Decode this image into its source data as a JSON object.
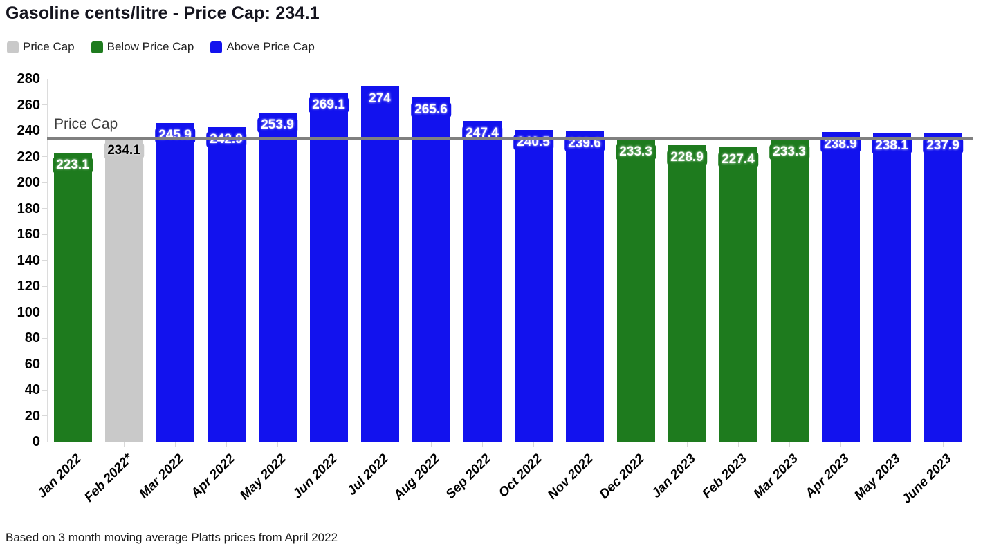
{
  "title": "Gasoline cents/litre - Price Cap: 234.1",
  "footnote": "Based on 3 month moving average Platts prices from April 2022",
  "chart_data": {
    "type": "bar",
    "title": "Gasoline cents/litre - Price Cap: 234.1",
    "annotation": "Price Cap",
    "price_cap": 234.1,
    "ylim": [
      0,
      280
    ],
    "ytick_step": 20,
    "grid": false,
    "legend_position": "top-left",
    "legend": [
      {
        "label": "Price Cap",
        "key": "cap"
      },
      {
        "label": "Below Price Cap",
        "key": "below"
      },
      {
        "label": "Above Price Cap",
        "key": "above"
      }
    ],
    "colors": {
      "cap": "#c9c9c9",
      "below": "#1e7b1e",
      "above": "#1212ee",
      "line": "#808080",
      "bar_label_text": "#ffffff",
      "cap_label_text": "#000000",
      "annotation_text": "#3c3c3c"
    },
    "bars": [
      {
        "category": "Jan 2022",
        "value": 223.1,
        "status": "below"
      },
      {
        "category": "Feb 2022*",
        "value": 234.1,
        "status": "cap"
      },
      {
        "category": "Mar 2022",
        "value": 245.9,
        "status": "above"
      },
      {
        "category": "Apr 2022",
        "value": 242.9,
        "status": "above"
      },
      {
        "category": "May 2022",
        "value": 253.9,
        "status": "above"
      },
      {
        "category": "Jun 2022",
        "value": 269.1,
        "status": "above"
      },
      {
        "category": "Jul 2022",
        "value": 274,
        "status": "above"
      },
      {
        "category": "Aug 2022",
        "value": 265.6,
        "status": "above"
      },
      {
        "category": "Sep 2022",
        "value": 247.4,
        "status": "above"
      },
      {
        "category": "Oct 2022",
        "value": 240.5,
        "status": "above"
      },
      {
        "category": "Nov 2022",
        "value": 239.6,
        "status": "above"
      },
      {
        "category": "Dec 2022",
        "value": 233.3,
        "status": "below"
      },
      {
        "category": "Jan 2023",
        "value": 228.9,
        "status": "below"
      },
      {
        "category": "Feb 2023",
        "value": 227.4,
        "status": "below"
      },
      {
        "category": "Mar 2023",
        "value": 233.3,
        "status": "below"
      },
      {
        "category": "Apr 2023",
        "value": 238.9,
        "status": "above"
      },
      {
        "category": "May 2023",
        "value": 238.1,
        "status": "above"
      },
      {
        "category": "June 2023",
        "value": 237.9,
        "status": "above"
      }
    ]
  }
}
